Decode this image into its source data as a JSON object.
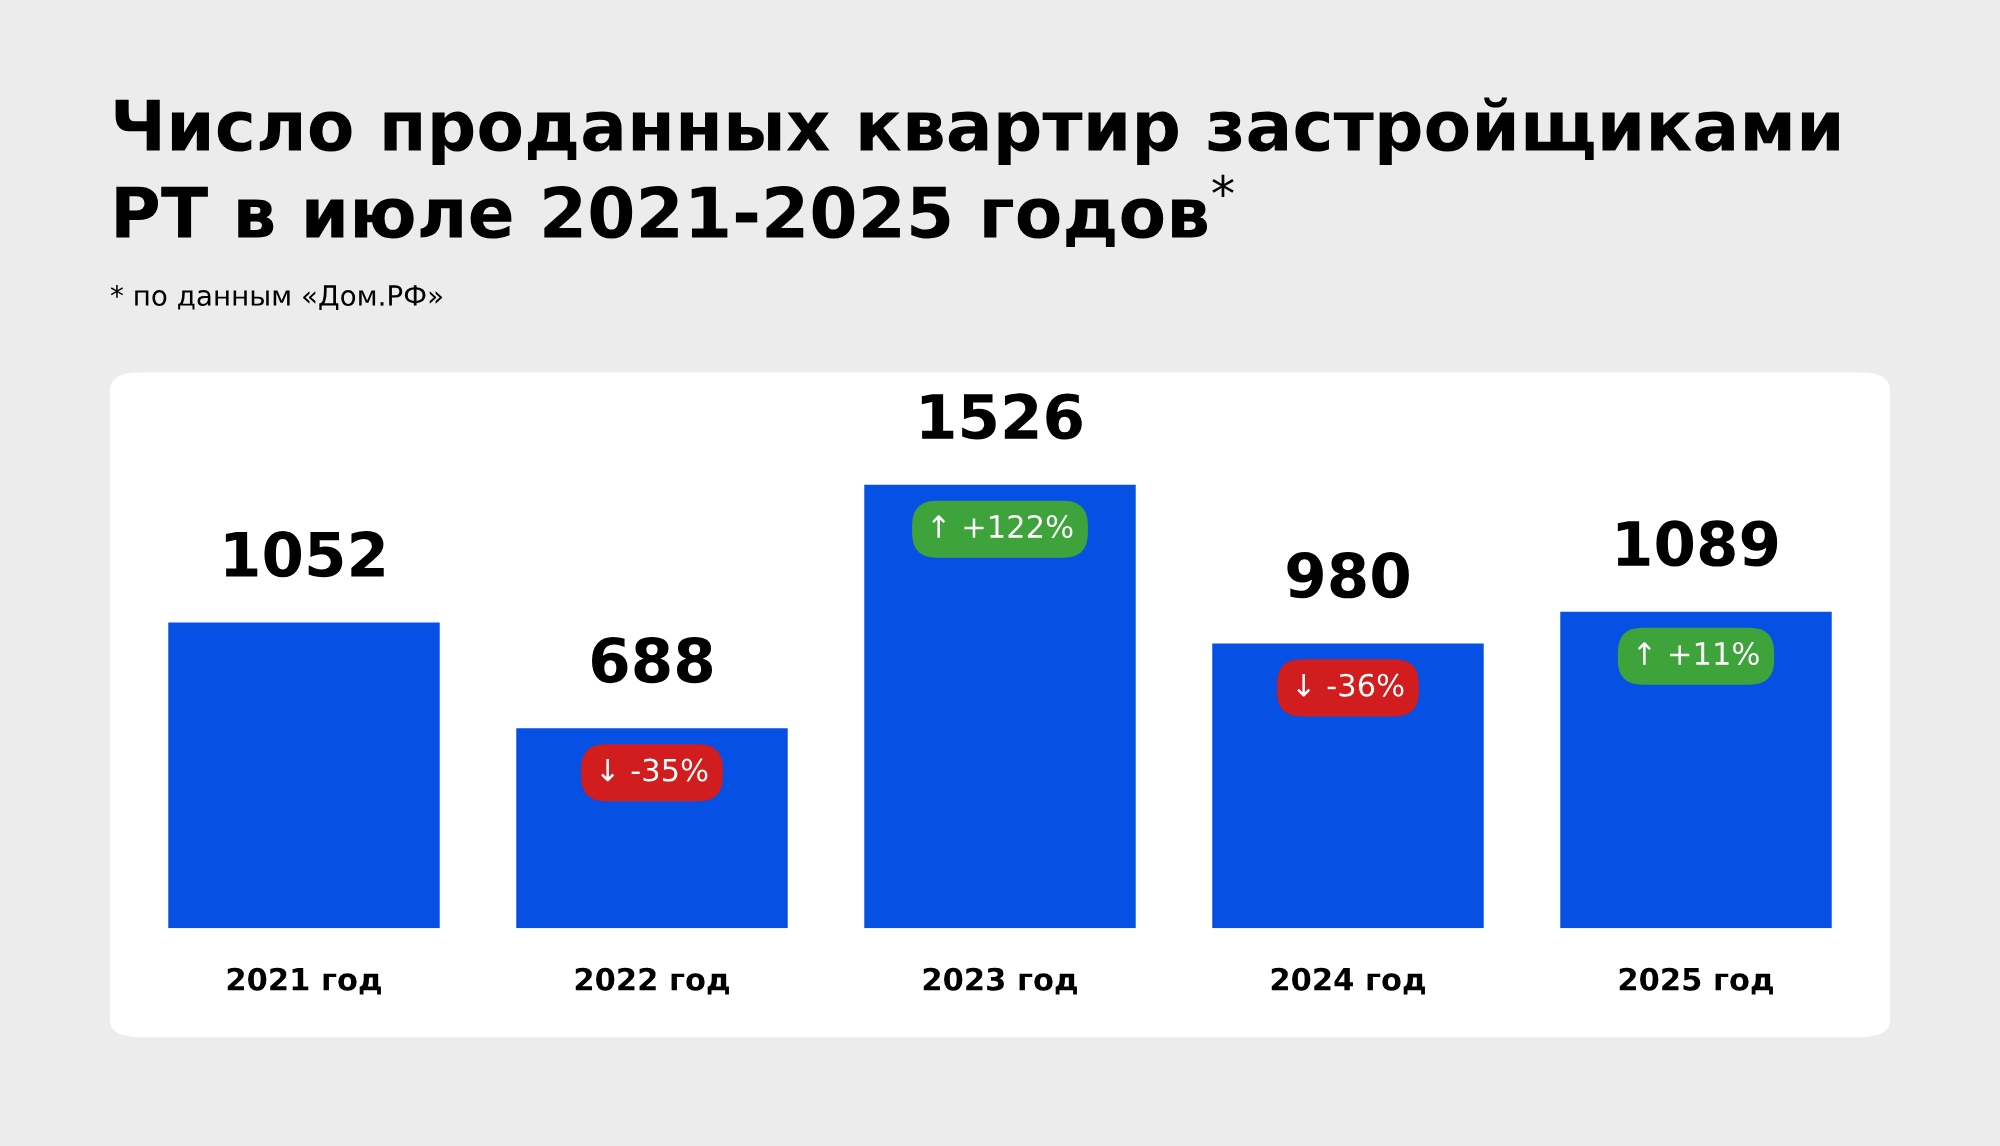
{
  "chart_data": {
    "type": "bar",
    "title": "Число проданных квартир застройщиками\nРТ в июле 2021-2025 годов$^{*}$",
    "categories": [
      "2021 год",
      "2022 год",
      "2023 год",
      "2024 год",
      "2025 год"
    ],
    "values": [
      1052,
      688,
      1526,
      980,
      1089
    ],
    "color": "#0650e3",
    "data_labels": true,
    "grid": false,
    "annotations": [
      "* по данным «Дом.РФ»",
      "↓ -35%",
      "↑ +122%",
      "↓ -36%",
      "↑ +11%"
    ]
  }
}
